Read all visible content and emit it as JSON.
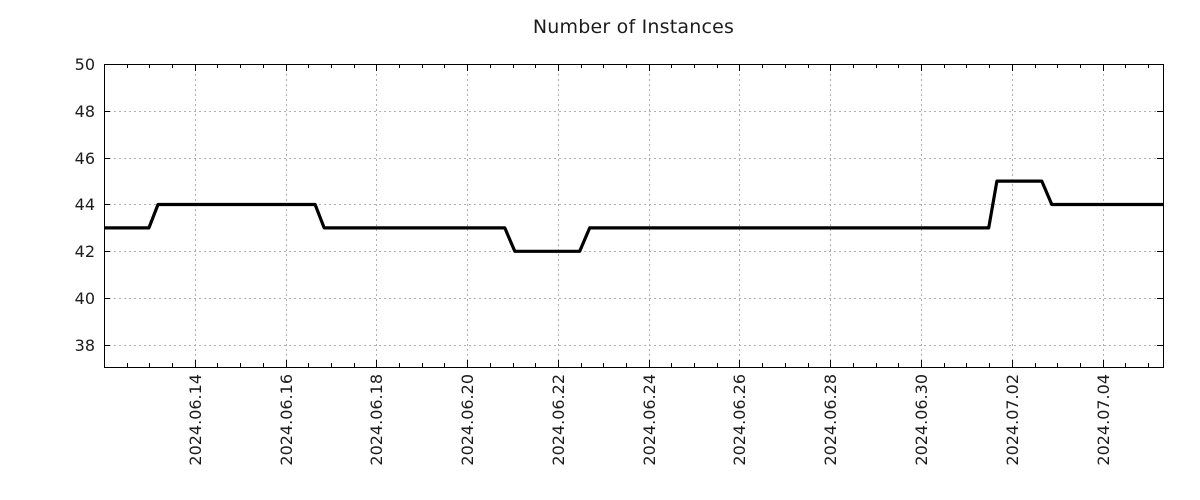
{
  "chart_data": {
    "type": "line",
    "title": "Number of Instances",
    "xlabel": "",
    "ylabel": "",
    "colors": {
      "line": "#000000",
      "grid": "#b0b0b0",
      "frame": "#000000",
      "text": "#1c1c1c",
      "background": "#ffffff"
    },
    "grid": {
      "show": true,
      "style": "dotted"
    },
    "legend": {
      "show": false
    },
    "x_axis": {
      "unit": "days since 2024-06-12 00:00",
      "range_start": "2024-06-12 00:00",
      "range_end": "2024-07-05 08:00",
      "span_days": 23.33,
      "minor_tick_interval_days": 0.5,
      "major_ticks": [
        {
          "t": 2,
          "label": "2024.06.14"
        },
        {
          "t": 4,
          "label": "2024.06.16"
        },
        {
          "t": 6,
          "label": "2024.06.18"
        },
        {
          "t": 8,
          "label": "2024.06.20"
        },
        {
          "t": 10,
          "label": "2024.06.22"
        },
        {
          "t": 12,
          "label": "2024.06.24"
        },
        {
          "t": 14,
          "label": "2024.06.26"
        },
        {
          "t": 16,
          "label": "2024.06.28"
        },
        {
          "t": 18,
          "label": "2024.06.30"
        },
        {
          "t": 20,
          "label": "2024.07.02"
        },
        {
          "t": 22,
          "label": "2024.07.04"
        }
      ]
    },
    "y_axis": {
      "ticks": [
        38,
        40,
        42,
        44,
        46,
        48,
        50
      ],
      "ylim": [
        37.06,
        50
      ]
    },
    "series": [
      {
        "name": "instances",
        "points": [
          {
            "t": 0.0,
            "time": "2024-06-12 00:00",
            "value": 43
          },
          {
            "t": 0.99,
            "time": "2024-06-13 00:00",
            "value": 43
          },
          {
            "t": 1.19,
            "time": "2024-06-13 04:30",
            "value": 44
          },
          {
            "t": 4.65,
            "time": "2024-06-16 15:30",
            "value": 44
          },
          {
            "t": 4.85,
            "time": "2024-06-16 20:30",
            "value": 43
          },
          {
            "t": 8.83,
            "time": "2024-06-20 20:00",
            "value": 43
          },
          {
            "t": 9.05,
            "time": "2024-06-21 01:00",
            "value": 42
          },
          {
            "t": 10.48,
            "time": "2024-06-22 11:30",
            "value": 42
          },
          {
            "t": 10.7,
            "time": "2024-06-22 17:00",
            "value": 43
          },
          {
            "t": 19.49,
            "time": "2024-07-01 11:45",
            "value": 43
          },
          {
            "t": 19.67,
            "time": "2024-07-01 16:00",
            "value": 45
          },
          {
            "t": 20.66,
            "time": "2024-07-02 16:00",
            "value": 45
          },
          {
            "t": 20.88,
            "time": "2024-07-02 21:00",
            "value": 44
          },
          {
            "t": 23.33,
            "time": "2024-07-05 08:00",
            "value": 44
          }
        ]
      }
    ]
  }
}
